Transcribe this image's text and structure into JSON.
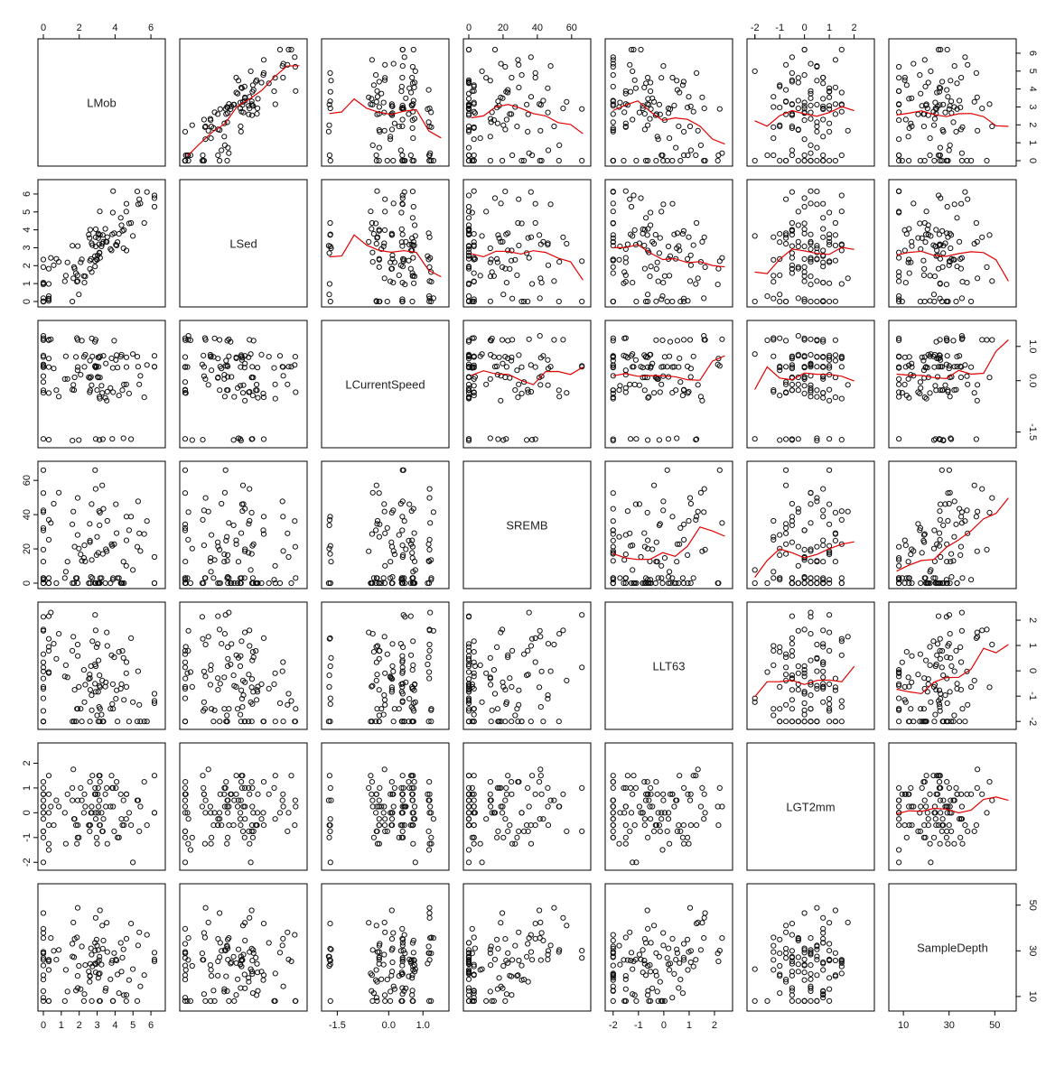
{
  "chart_data": {
    "type": "scatter",
    "title": "",
    "variables": [
      {
        "name": "LMob",
        "range": [
          0,
          6.5
        ],
        "ticks_top": [
          "0",
          "2",
          "4",
          "6"
        ],
        "tick_values_top": [
          0,
          2,
          4,
          6
        ],
        "ticks_bottom": [
          "0",
          "1",
          "2",
          "3",
          "4",
          "5",
          "6"
        ],
        "tick_values_bottom": [
          0,
          1,
          2,
          3,
          4,
          5,
          6
        ]
      },
      {
        "name": "LSed",
        "range": [
          0,
          6.5
        ],
        "ticks": [
          "0",
          "1",
          "2",
          "3",
          "4",
          "5",
          "6"
        ],
        "tick_values": [
          0,
          1,
          2,
          3,
          4,
          5,
          6
        ]
      },
      {
        "name": "LCurrentSpeed",
        "range": [
          -1.8,
          1.6
        ],
        "ticks_bottom": [
          "-1.5",
          "0.0",
          "1.0"
        ],
        "tick_values_bottom": [
          -1.5,
          0,
          1
        ],
        "ticks_right": [
          "1.0",
          "0.0",
          "-1.5"
        ],
        "tick_values_right": [
          1,
          0,
          -1.5
        ]
      },
      {
        "name": "SREMB",
        "range": [
          0,
          68
        ],
        "ticks_top": [
          "0",
          "20",
          "40",
          "60"
        ],
        "tick_values_top": [
          0,
          20,
          40,
          60
        ],
        "ticks_left": [
          "0",
          "20",
          "40",
          "60"
        ],
        "tick_values_left": [
          0,
          20,
          40,
          60
        ]
      },
      {
        "name": "LLT63",
        "range": [
          -2.1,
          2.5
        ],
        "ticks_bottom": [
          "-2",
          "-1",
          "0",
          "1",
          "2"
        ],
        "tick_values_bottom": [
          -2,
          -1,
          0,
          1,
          2
        ],
        "ticks_right": [
          "2",
          "1",
          "0",
          "-1",
          "-2"
        ],
        "tick_values_right": [
          2,
          1,
          0,
          -1,
          -2
        ]
      },
      {
        "name": "LGT2mm",
        "range": [
          -2.1,
          2.6
        ],
        "ticks_top": [
          "-2",
          "-1",
          "0",
          "1",
          "2"
        ],
        "tick_values_top": [
          -2,
          -1,
          0,
          1,
          2
        ],
        "ticks_left": [
          "-2",
          "-1",
          "0",
          "1",
          "2"
        ],
        "tick_values_left": [
          -2,
          -1,
          0,
          1,
          2
        ]
      },
      {
        "name": "SampleDepth",
        "range": [
          6,
          57
        ],
        "ticks_bottom": [
          "10",
          "30",
          "50"
        ],
        "tick_values_bottom": [
          10,
          30,
          50
        ],
        "ticks_right": [
          "10",
          "30",
          "50"
        ],
        "tick_values_right": [
          10,
          30,
          50
        ]
      }
    ],
    "n_points": 110,
    "upper_panels": "scatter with red lowess smooth line",
    "lower_panels": "scatter",
    "grid": false,
    "legend": "none"
  }
}
